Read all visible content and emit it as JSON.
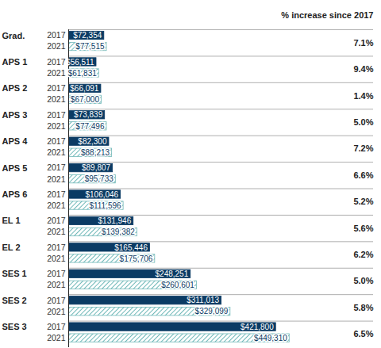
{
  "chart_data": {
    "type": "bar",
    "orientation": "horizontal",
    "categories": [
      "Grad.",
      "APS 1",
      "APS 2",
      "APS 3",
      "APS 4",
      "APS 5",
      "APS 6",
      "EL 1",
      "EL 2",
      "SES 1",
      "SES 2",
      "SES 3"
    ],
    "series": [
      {
        "name": "2017",
        "color": "#0b3b64",
        "values": [
          72354,
          56511,
          66091,
          73839,
          82300,
          89807,
          106046,
          131946,
          165446,
          248251,
          311013,
          421800
        ],
        "value_labels": [
          "$72,354",
          "$56,511",
          "$66,091",
          "$73,839",
          "$82,300",
          "$89,807",
          "$106,046",
          "$131,946",
          "$165,446",
          "$248,251",
          "$311,013",
          "$421,800"
        ]
      },
      {
        "name": "2021",
        "color": "#6fb8b8",
        "values": [
          77515,
          61831,
          67000,
          77496,
          88213,
          95733,
          111596,
          139382,
          175706,
          260601,
          329099,
          449310
        ],
        "value_labels": [
          "$77,515",
          "$61,831",
          "$67,000",
          "$77,496",
          "$88,213",
          "$95,733",
          "$111,596",
          "$139,382",
          "$175,706",
          "$260,601",
          "$329,099",
          "$449,310"
        ]
      }
    ],
    "annotations": {
      "title": "% increase since 2017",
      "labels": [
        "7.1%",
        "9.4%",
        "1.4%",
        "5.0%",
        "7.2%",
        "6.6%",
        "5.2%",
        "5.6%",
        "6.2%",
        "5.0%",
        "5.8%",
        "6.5%"
      ]
    },
    "xlim": [
      0,
      620000
    ],
    "xticks": [],
    "tick_labels": false,
    "grid": false,
    "data_labels": true
  }
}
